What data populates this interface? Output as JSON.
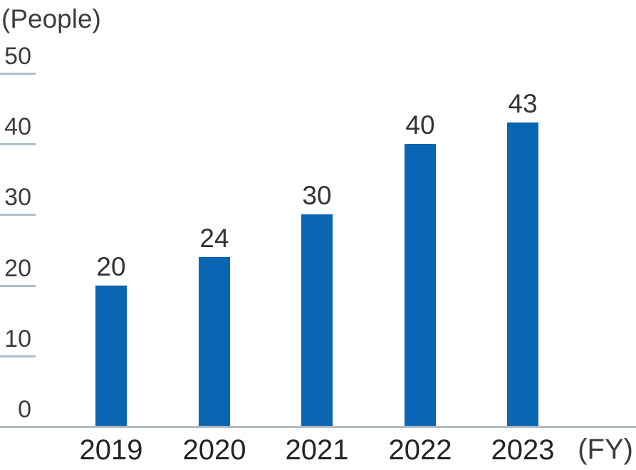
{
  "chart_data": {
    "type": "bar",
    "title": "",
    "y_unit_label": "(People)",
    "x_unit_label": "(FY)",
    "categories": [
      "2019",
      "2020",
      "2021",
      "2022",
      "2023"
    ],
    "values": [
      20,
      24,
      30,
      40,
      43
    ],
    "data_labels": [
      "20",
      "24",
      "30",
      "40",
      "43"
    ],
    "yticks": [
      0,
      10,
      20,
      30,
      40,
      50
    ],
    "ylim": [
      0,
      50
    ],
    "legend": "none",
    "grid": "short left tick segments only",
    "colors": {
      "bar": "#0a65b2",
      "tick_line": "#abbfc8",
      "axis_line": "#b2bbc1",
      "tick_text": "#3a3d40",
      "data_label_text": "#333333",
      "category_text": "#242424",
      "unit_text": "#3a3d40"
    }
  }
}
